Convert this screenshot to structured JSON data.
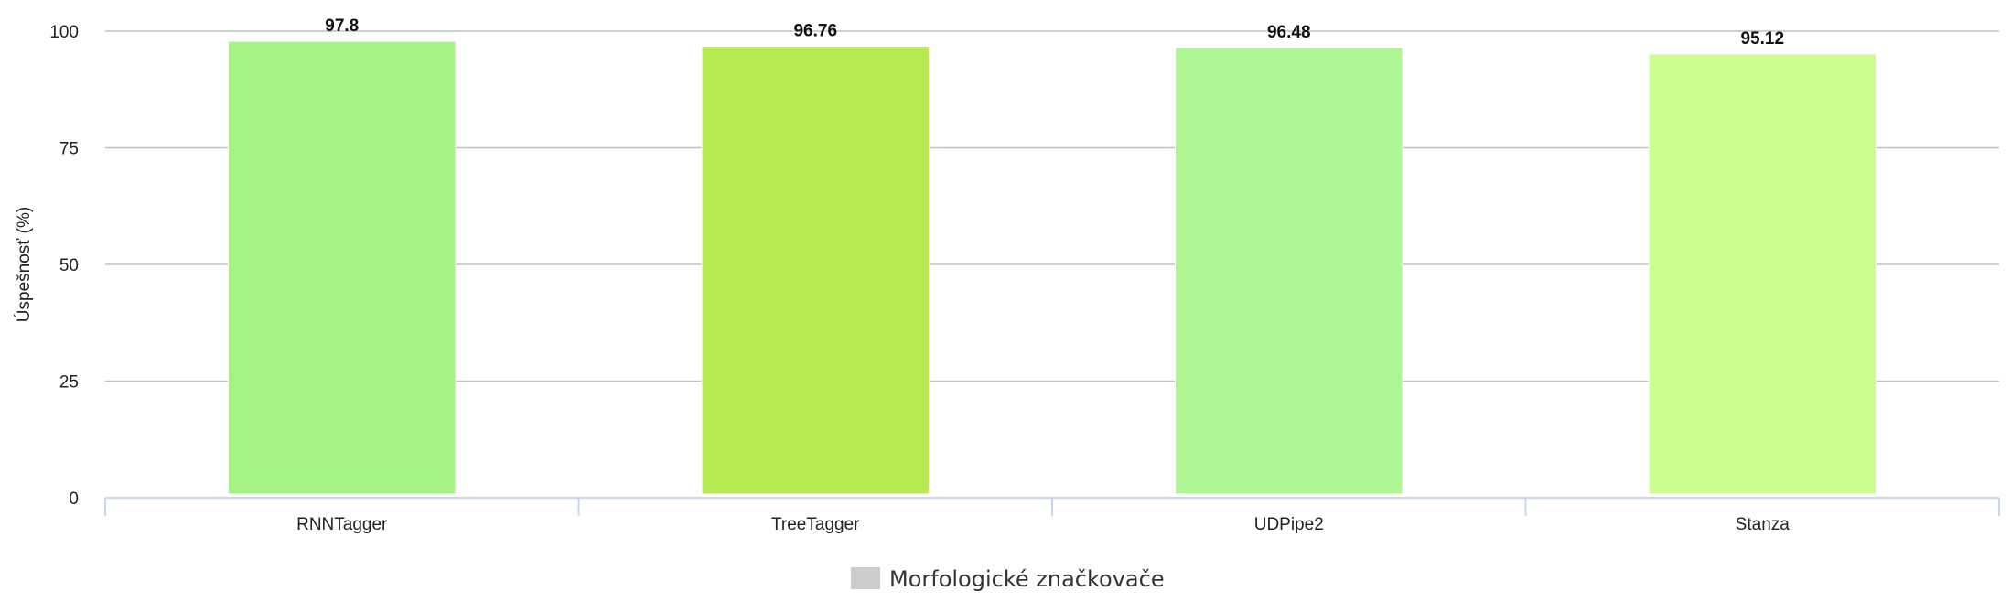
{
  "chart_data": {
    "type": "bar",
    "title": "",
    "xlabel": "",
    "ylabel": "Úspešnosť (%)",
    "categories": [
      "RNNTagger",
      "TreeTagger",
      "UDPipe2",
      "Stanza"
    ],
    "series": [
      {
        "name": "Morfologické značkovače",
        "values": [
          97.8,
          96.76,
          96.48,
          95.12
        ],
        "value_labels": [
          "97.8",
          "96.76",
          "96.48",
          "95.12"
        ],
        "colors": [
          "#a6f284",
          "#b7e952",
          "#aef693",
          "#cbfe91"
        ]
      }
    ],
    "ylim": [
      0,
      100
    ],
    "yticks": [
      0,
      25,
      50,
      75,
      100
    ],
    "ytick_labels": [
      "0",
      "25",
      "50",
      "75",
      "100"
    ],
    "grid": true,
    "legend": {
      "placement": "bottom-center",
      "label": "Morfologické značkovače",
      "swatch_color": "#cccccc"
    },
    "gridline_color": "#c0c0c0",
    "axis_color": "#ccd6eb"
  }
}
